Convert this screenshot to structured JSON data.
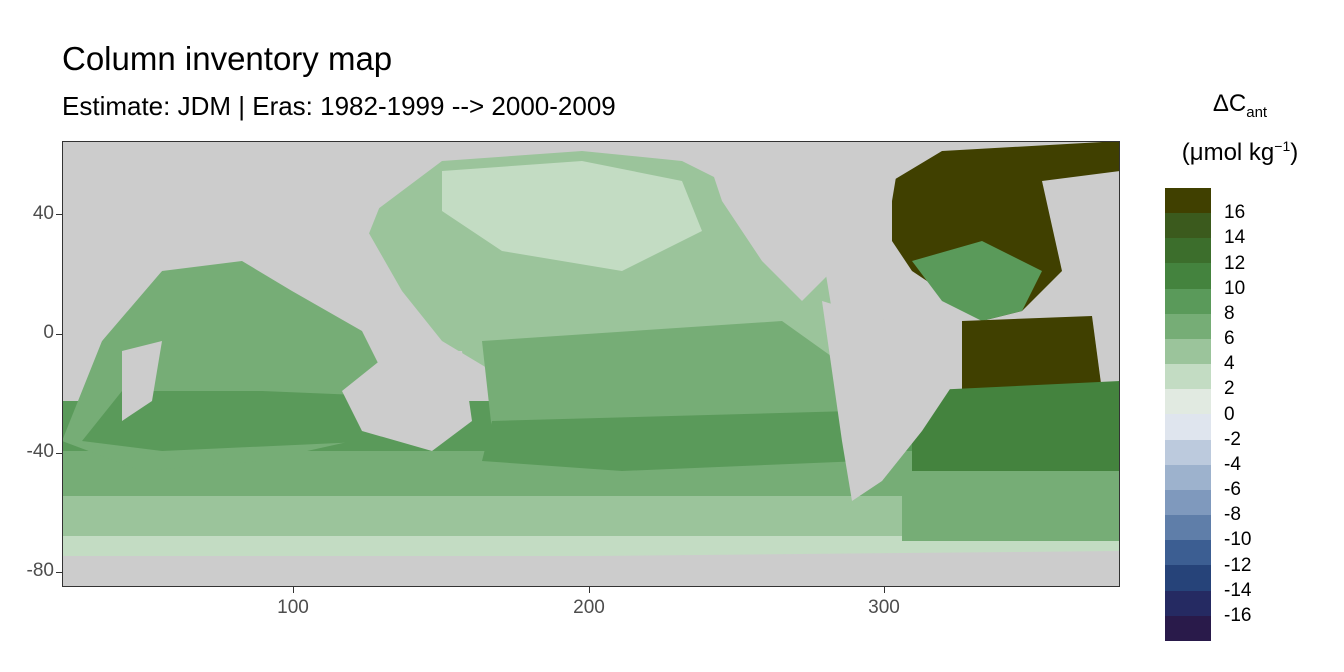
{
  "title": "Column inventory map",
  "subtitle": "Estimate: JDM  | Eras: 1982-1999 --> 2000-2009",
  "legend": {
    "title_main": "ΔC",
    "title_sub": "ant",
    "unit_prefix": "(μmol kg",
    "unit_sup": "−1",
    "unit_suffix": ")",
    "colors": [
      "#404000",
      "#3b5a1d",
      "#3c6e2c",
      "#44833e",
      "#5a9a5a",
      "#76ad76",
      "#9bc49b",
      "#c3dcc3",
      "#e1eae1",
      "#dfe5ee",
      "#bccadd",
      "#9db2cd",
      "#7f99bd",
      "#5f7ea9",
      "#3c5e92",
      "#264379",
      "#252a62",
      "#291a4a"
    ],
    "labels": [
      "16",
      "14",
      "12",
      "10",
      "8",
      "6",
      "4",
      "2",
      "0",
      "-2",
      "-4",
      "-6",
      "-8",
      "-10",
      "-12",
      "-14",
      "-16"
    ]
  },
  "map_data": {
    "type": "raster",
    "x_axis": {
      "ticks": [
        100,
        200,
        300
      ],
      "range": [
        20,
        380
      ]
    },
    "y_axis": {
      "ticks": [
        40,
        0,
        -40,
        -80
      ],
      "range": [
        -84,
        65
      ]
    },
    "land_color": "#cccccc"
  }
}
